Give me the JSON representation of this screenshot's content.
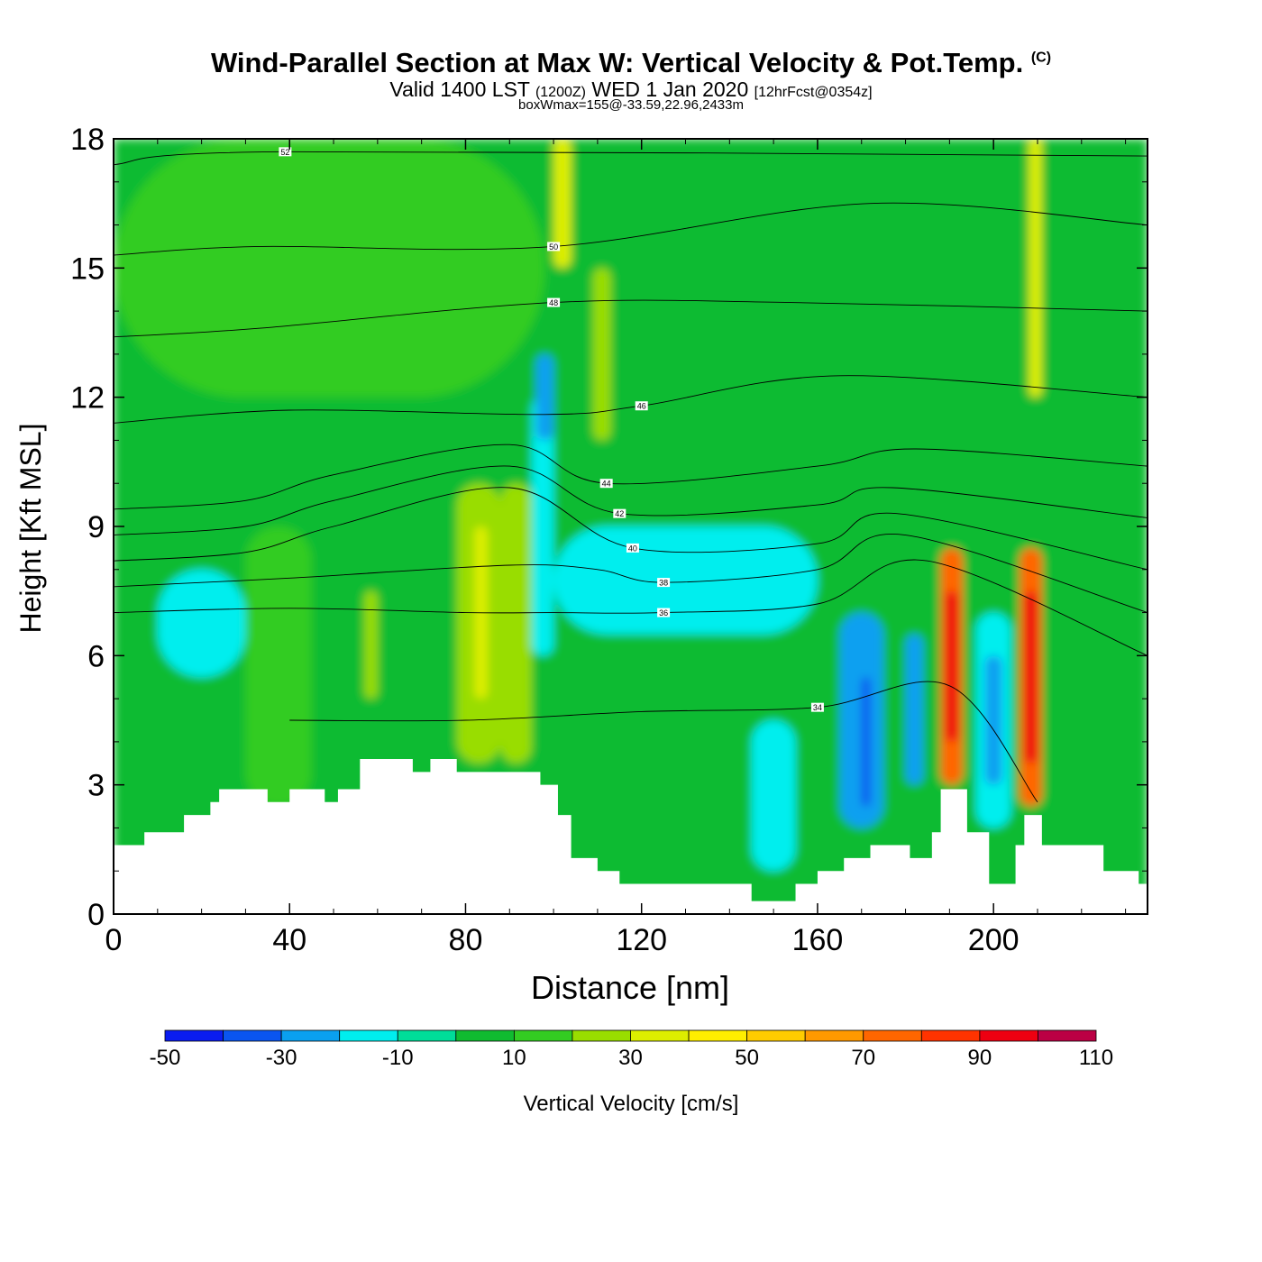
{
  "title": {
    "main": "Wind-Parallel Section at Max W: Vertical Velocity & Pot.Temp.",
    "copyright": "(C)",
    "valid_prefix": "Valid 1400 LST",
    "valid_zulu": "(1200Z)",
    "valid_date": "WED 1 Jan 2020",
    "forecast": "[12hrFcst@0354z]",
    "box_wmax": "boxWmax=155@-33.59,22.96,2433m"
  },
  "chart_data": {
    "type": "heatmap",
    "xlabel": "Distance [nm]",
    "ylabel": "Height [Kft MSL]",
    "xlim": [
      0,
      235
    ],
    "ylim": [
      0,
      18
    ],
    "x_ticks": [
      0,
      40,
      80,
      120,
      160,
      200
    ],
    "y_ticks": [
      0,
      3,
      6,
      9,
      12,
      15,
      18
    ],
    "colorbar": {
      "label": "Vertical Velocity [cm/s]",
      "bounds": [
        -50,
        -40,
        -30,
        -20,
        -10,
        0,
        10,
        20,
        30,
        40,
        50,
        60,
        70,
        80,
        90,
        100,
        110
      ],
      "colors": [
        "#0a1cf0",
        "#0a55f0",
        "#0aa0f0",
        "#00eeee",
        "#00dd99",
        "#10bb30",
        "#33cc22",
        "#99dd00",
        "#ddee00",
        "#ffee00",
        "#ffcc00",
        "#ff9900",
        "#ff6600",
        "#ff3300",
        "#ee0011",
        "#bb0044"
      ],
      "tick_labels": [
        "-50",
        "-30",
        "-10",
        "10",
        "30",
        "50",
        "70",
        "90",
        "110"
      ]
    },
    "vertical_velocity_cells": [
      {
        "x0": 0,
        "x1": 235,
        "y0": 0,
        "y1": 18,
        "value": 5
      },
      {
        "x0": 0,
        "x1": 98,
        "y0": 12,
        "y1": 18,
        "value": 12
      },
      {
        "x0": 10,
        "x1": 30,
        "y0": 5.5,
        "y1": 8,
        "value": -15
      },
      {
        "x0": 30,
        "x1": 45,
        "y0": 2.5,
        "y1": 9,
        "value": 15
      },
      {
        "x0": 57,
        "x1": 60,
        "y0": 5,
        "y1": 7.5,
        "value": 25
      },
      {
        "x0": 78,
        "x1": 88,
        "y0": 3.5,
        "y1": 10,
        "value": 25
      },
      {
        "x0": 82,
        "x1": 85,
        "y0": 5,
        "y1": 9,
        "value": 35
      },
      {
        "x0": 88,
        "x1": 95,
        "y0": 3.5,
        "y1": 10,
        "value": 25
      },
      {
        "x0": 95,
        "x1": 100,
        "y0": 6,
        "y1": 12,
        "value": -15
      },
      {
        "x0": 96,
        "x1": 100,
        "y0": 11,
        "y1": 13,
        "value": -25
      },
      {
        "x0": 100,
        "x1": 104,
        "y0": 15,
        "y1": 18,
        "value": 35
      },
      {
        "x0": 109,
        "x1": 113,
        "y0": 11,
        "y1": 15,
        "value": 25
      },
      {
        "x0": 100,
        "x1": 160,
        "y0": 6.5,
        "y1": 9,
        "value": -12
      },
      {
        "x0": 145,
        "x1": 155,
        "y0": 1,
        "y1": 4.5,
        "value": -12
      },
      {
        "x0": 165,
        "x1": 175,
        "y0": 2,
        "y1": 7,
        "value": -25
      },
      {
        "x0": 170,
        "x1": 172,
        "y0": 2.5,
        "y1": 5.5,
        "value": -35
      },
      {
        "x0": 180,
        "x1": 184,
        "y0": 3,
        "y1": 6.5,
        "value": -25
      },
      {
        "x0": 188,
        "x1": 193,
        "y0": 3,
        "y1": 8.5,
        "value": 75
      },
      {
        "x0": 189,
        "x1": 192,
        "y0": 4,
        "y1": 7.5,
        "value": 95
      },
      {
        "x0": 196,
        "x1": 204,
        "y0": 2,
        "y1": 7,
        "value": -15
      },
      {
        "x0": 198,
        "x1": 202,
        "y0": 3,
        "y1": 6,
        "value": -25
      },
      {
        "x0": 206,
        "x1": 211,
        "y0": 2.5,
        "y1": 8.5,
        "value": 75
      },
      {
        "x0": 207,
        "x1": 210,
        "y0": 3.5,
        "y1": 7.5,
        "value": 95
      },
      {
        "x0": 208,
        "x1": 211,
        "y0": 12,
        "y1": 18,
        "value": 35
      }
    ],
    "terrain_profile": [
      {
        "x": 0,
        "height": 1.6
      },
      {
        "x": 7,
        "height": 1.9
      },
      {
        "x": 16,
        "height": 2.3
      },
      {
        "x": 22,
        "height": 2.6
      },
      {
        "x": 24,
        "height": 2.9
      },
      {
        "x": 35,
        "height": 2.6
      },
      {
        "x": 40,
        "height": 2.9
      },
      {
        "x": 48,
        "height": 2.6
      },
      {
        "x": 51,
        "height": 2.9
      },
      {
        "x": 56,
        "height": 3.6
      },
      {
        "x": 68,
        "height": 3.3
      },
      {
        "x": 72,
        "height": 3.6
      },
      {
        "x": 78,
        "height": 3.3
      },
      {
        "x": 97,
        "height": 3.0
      },
      {
        "x": 101,
        "height": 2.3
      },
      {
        "x": 104,
        "height": 1.3
      },
      {
        "x": 110,
        "height": 1.0
      },
      {
        "x": 115,
        "height": 0.7
      },
      {
        "x": 130,
        "height": 0.7
      },
      {
        "x": 140,
        "height": 0.7
      },
      {
        "x": 145,
        "height": 0.3
      },
      {
        "x": 155,
        "height": 0.7
      },
      {
        "x": 160,
        "height": 1.0
      },
      {
        "x": 166,
        "height": 1.3
      },
      {
        "x": 172,
        "height": 1.6
      },
      {
        "x": 181,
        "height": 1.3
      },
      {
        "x": 186,
        "height": 1.9
      },
      {
        "x": 188,
        "height": 2.9
      },
      {
        "x": 194,
        "height": 1.9
      },
      {
        "x": 199,
        "height": 0.7
      },
      {
        "x": 205,
        "height": 1.6
      },
      {
        "x": 207,
        "height": 2.3
      },
      {
        "x": 211,
        "height": 1.6
      },
      {
        "x": 225,
        "height": 1.0
      },
      {
        "x": 233,
        "height": 0.7
      },
      {
        "x": 235,
        "height": 0.7
      }
    ],
    "potential_temperature_contours": [
      {
        "label": "34",
        "points": [
          [
            40,
            4.5
          ],
          [
            80,
            4.5
          ],
          [
            120,
            4.7
          ],
          [
            160,
            4.8
          ],
          [
            190,
            5.3
          ],
          [
            210,
            2.6
          ]
        ]
      },
      {
        "label": "36",
        "points": [
          [
            0,
            7
          ],
          [
            40,
            7.1
          ],
          [
            80,
            7.0
          ],
          [
            100,
            7.0
          ],
          [
            125,
            7.0
          ],
          [
            160,
            7.2
          ],
          [
            185,
            8.2
          ],
          [
            235,
            6.0
          ]
        ]
      },
      {
        "label": "38",
        "points": [
          [
            0,
            7.6
          ],
          [
            40,
            7.8
          ],
          [
            90,
            8.1
          ],
          [
            110,
            8.0
          ],
          [
            125,
            7.7
          ],
          [
            160,
            8.0
          ],
          [
            180,
            8.8
          ],
          [
            235,
            7.0
          ]
        ]
      },
      {
        "label": "40",
        "points": [
          [
            0,
            8.2
          ],
          [
            30,
            8.4
          ],
          [
            50,
            9.0
          ],
          [
            90,
            9.9
          ],
          [
            118,
            8.5
          ],
          [
            160,
            8.6
          ],
          [
            178,
            9.3
          ],
          [
            235,
            8.0
          ]
        ]
      },
      {
        "label": "42",
        "points": [
          [
            0,
            8.8
          ],
          [
            30,
            9.0
          ],
          [
            50,
            9.6
          ],
          [
            90,
            10.4
          ],
          [
            115,
            9.3
          ],
          [
            160,
            9.5
          ],
          [
            177,
            9.9
          ],
          [
            235,
            9.2
          ]
        ]
      },
      {
        "label": "44",
        "points": [
          [
            0,
            9.4
          ],
          [
            30,
            9.6
          ],
          [
            50,
            10.2
          ],
          [
            90,
            10.9
          ],
          [
            112,
            10.0
          ],
          [
            160,
            10.4
          ],
          [
            182,
            10.8
          ],
          [
            235,
            10.4
          ]
        ]
      },
      {
        "label": "46",
        "points": [
          [
            0,
            11.4
          ],
          [
            40,
            11.7
          ],
          [
            98,
            11.6
          ],
          [
            120,
            11.8
          ],
          [
            165,
            12.5
          ],
          [
            235,
            12.0
          ]
        ]
      },
      {
        "label": "48",
        "points": [
          [
            0,
            13.4
          ],
          [
            33,
            13.6
          ],
          [
            100,
            14.2
          ],
          [
            154,
            14.2
          ],
          [
            235,
            14.0
          ]
        ]
      },
      {
        "label": "50",
        "points": [
          [
            0,
            15.3
          ],
          [
            33,
            15.5
          ],
          [
            100,
            15.5
          ],
          [
            172,
            16.5
          ],
          [
            235,
            16.0
          ]
        ]
      },
      {
        "label": "52",
        "points": [
          [
            0,
            17.4
          ],
          [
            39,
            17.7
          ],
          [
            235,
            17.6
          ]
        ]
      }
    ]
  }
}
